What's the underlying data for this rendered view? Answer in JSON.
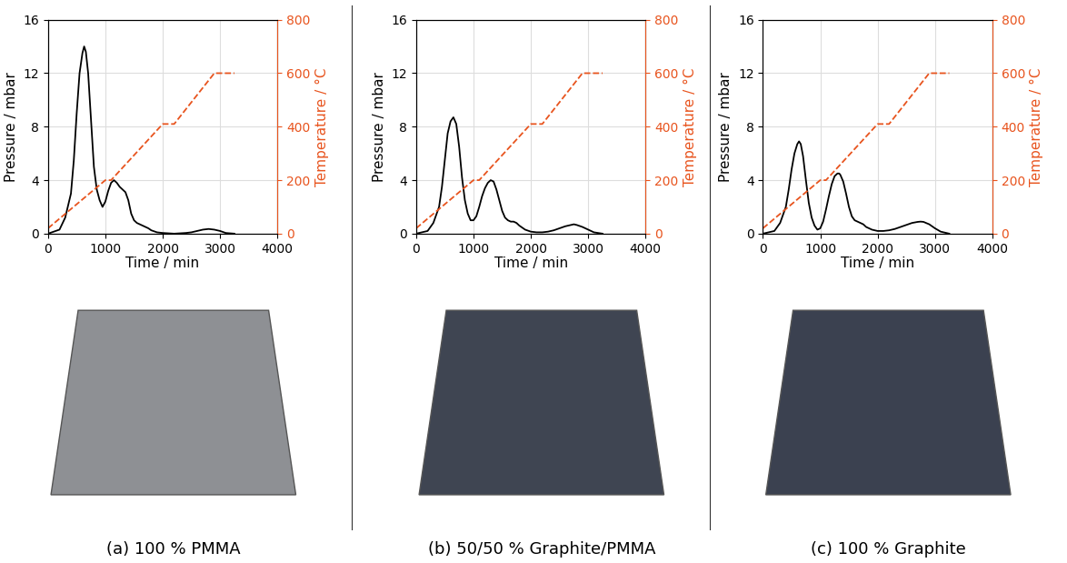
{
  "chart_data": [
    {
      "type": "line",
      "title": "(a) 100 % PMMA",
      "x_label": "Time / min",
      "y_label": "Pressure / mbar",
      "y2_label": "Temperature / °C",
      "xlim": [
        0,
        4000
      ],
      "xticks": [
        0,
        1000,
        2000,
        3000,
        4000
      ],
      "ylim": [
        0,
        16
      ],
      "yticks": [
        0,
        4,
        8,
        12,
        16
      ],
      "y2lim": [
        0,
        800
      ],
      "y2ticks": [
        0,
        200,
        400,
        600,
        800
      ],
      "grid": true,
      "series": [
        {
          "color": "#000000",
          "line_style": "solid",
          "x": [
            0,
            200,
            300,
            400,
            450,
            500,
            550,
            600,
            630,
            660,
            700,
            750,
            800,
            850,
            900,
            950,
            1000,
            1050,
            1100,
            1150,
            1200,
            1250,
            1300,
            1350,
            1400,
            1450,
            1500,
            1550,
            1600,
            1650,
            1700,
            1750,
            1800,
            1900,
            2000,
            2200,
            2400,
            2500,
            2600,
            2700,
            2800,
            2900,
            3000,
            3100,
            3250
          ],
          "values": [
            0,
            0.3,
            1.2,
            3.0,
            5.5,
            9.0,
            12.0,
            13.5,
            14.0,
            13.6,
            12.0,
            8.5,
            5.0,
            3.3,
            2.5,
            2.0,
            2.4,
            3.2,
            3.8,
            4.0,
            3.8,
            3.5,
            3.3,
            3.1,
            2.5,
            1.5,
            1.0,
            0.8,
            0.7,
            0.6,
            0.5,
            0.4,
            0.25,
            0.1,
            0.05,
            0.0,
            0.05,
            0.1,
            0.2,
            0.3,
            0.35,
            0.3,
            0.2,
            0.05,
            0.0
          ]
        },
        {
          "color": "#e8541e",
          "line_style": "dashed",
          "axis": "y2",
          "x": [
            0,
            1000,
            1100,
            2000,
            2200,
            2900,
            3250
          ],
          "values": [
            20,
            200,
            200,
            410,
            410,
            600,
            600
          ]
        }
      ]
    },
    {
      "type": "line",
      "title": "(b) 50/50 % Graphite/PMMA",
      "x_label": "Time / min",
      "y_label": "Pressure / mbar",
      "y2_label": "Temperature / °C",
      "xlim": [
        0,
        4000
      ],
      "xticks": [
        0,
        1000,
        2000,
        3000,
        4000
      ],
      "ylim": [
        0,
        16
      ],
      "yticks": [
        0,
        4,
        8,
        12,
        16
      ],
      "y2lim": [
        0,
        800
      ],
      "y2ticks": [
        0,
        200,
        400,
        600,
        800
      ],
      "grid": true,
      "series": [
        {
          "color": "#000000",
          "line_style": "solid",
          "x": [
            0,
            200,
            300,
            400,
            450,
            500,
            550,
            600,
            650,
            700,
            750,
            800,
            850,
            900,
            950,
            1000,
            1050,
            1100,
            1150,
            1200,
            1250,
            1300,
            1350,
            1400,
            1450,
            1500,
            1550,
            1600,
            1650,
            1700,
            1750,
            1800,
            1900,
            2000,
            2100,
            2200,
            2300,
            2400,
            2500,
            2600,
            2700,
            2750,
            2800,
            2900,
            3000,
            3100,
            3250
          ],
          "values": [
            0,
            0.2,
            0.8,
            2.0,
            3.5,
            5.5,
            7.5,
            8.4,
            8.7,
            8.2,
            6.5,
            4.2,
            2.5,
            1.5,
            1.0,
            1.0,
            1.3,
            2.0,
            2.8,
            3.4,
            3.8,
            4.0,
            3.9,
            3.3,
            2.5,
            1.7,
            1.2,
            1.0,
            0.9,
            0.9,
            0.8,
            0.6,
            0.3,
            0.15,
            0.1,
            0.1,
            0.15,
            0.25,
            0.4,
            0.55,
            0.65,
            0.7,
            0.65,
            0.5,
            0.3,
            0.1,
            0.0
          ]
        },
        {
          "color": "#e8541e",
          "line_style": "dashed",
          "axis": "y2",
          "x": [
            0,
            1000,
            1100,
            2000,
            2200,
            2900,
            3250
          ],
          "values": [
            20,
            200,
            200,
            410,
            410,
            600,
            600
          ]
        }
      ]
    },
    {
      "type": "line",
      "title": "(c) 100 % Graphite",
      "x_label": "Time / min",
      "y_label": "Pressure / mbar",
      "y2_label": "Temperature / °C",
      "xlim": [
        0,
        4000
      ],
      "xticks": [
        0,
        1000,
        2000,
        3000,
        4000
      ],
      "ylim": [
        0,
        16
      ],
      "yticks": [
        0,
        4,
        8,
        12,
        16
      ],
      "y2lim": [
        0,
        800
      ],
      "y2ticks": [
        0,
        200,
        400,
        600,
        800
      ],
      "grid": true,
      "series": [
        {
          "color": "#000000",
          "line_style": "solid",
          "x": [
            0,
            200,
            300,
            400,
            450,
            500,
            550,
            600,
            630,
            660,
            700,
            750,
            800,
            850,
            900,
            950,
            1000,
            1050,
            1100,
            1150,
            1200,
            1250,
            1300,
            1330,
            1350,
            1400,
            1450,
            1500,
            1550,
            1600,
            1650,
            1700,
            1750,
            1800,
            1900,
            2000,
            2100,
            2200,
            2300,
            2400,
            2500,
            2600,
            2700,
            2750,
            2800,
            2900,
            3000,
            3100,
            3250
          ],
          "values": [
            0,
            0.2,
            0.8,
            2.0,
            3.3,
            4.8,
            6.0,
            6.7,
            6.9,
            6.7,
            5.8,
            4.0,
            2.3,
            1.2,
            0.6,
            0.3,
            0.4,
            0.9,
            1.8,
            2.8,
            3.7,
            4.3,
            4.5,
            4.5,
            4.4,
            3.9,
            3.0,
            2.0,
            1.3,
            1.0,
            0.9,
            0.8,
            0.7,
            0.5,
            0.3,
            0.2,
            0.2,
            0.25,
            0.35,
            0.5,
            0.65,
            0.8,
            0.88,
            0.9,
            0.88,
            0.7,
            0.4,
            0.15,
            0.0
          ]
        },
        {
          "color": "#e8541e",
          "line_style": "dashed",
          "axis": "y2",
          "x": [
            0,
            1000,
            1100,
            2000,
            2200,
            2900,
            3250
          ],
          "values": [
            20,
            200,
            200,
            410,
            410,
            600,
            600
          ]
        }
      ]
    }
  ]
}
